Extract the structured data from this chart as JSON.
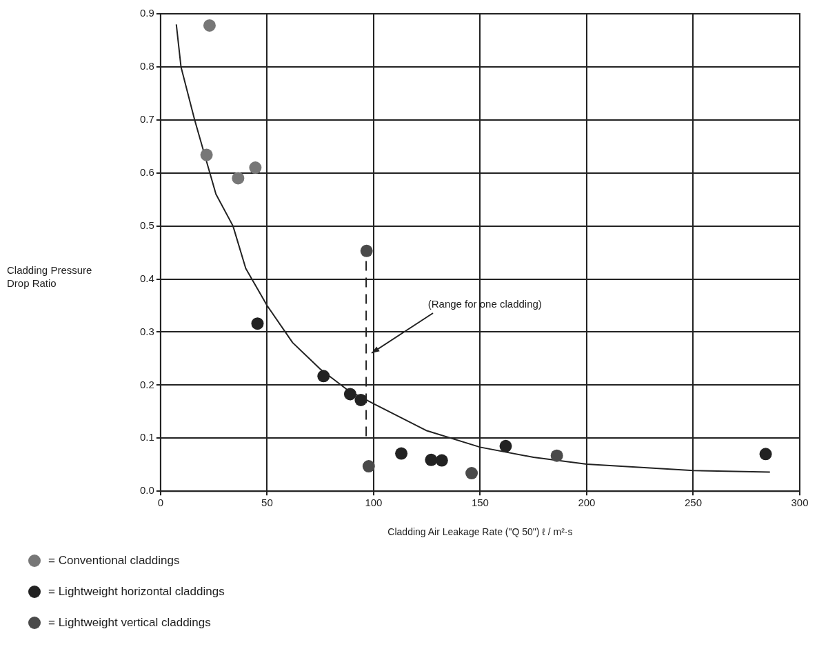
{
  "chart_data": {
    "type": "scatter",
    "xlabel": "Cladding Air Leakage Rate (\"Q 50\") ℓ / m²·s",
    "ylabel": "Cladding Pressure Drop Ratio",
    "xlim": [
      0,
      300
    ],
    "xticks": [
      0,
      50,
      100,
      150,
      200,
      250,
      300
    ],
    "ylim": [
      0,
      0.9
    ],
    "yticks": [
      {
        "value": 0,
        "label": "0.0"
      },
      0.1,
      0.2,
      0.3,
      0.4,
      0.5,
      0.6,
      0.7,
      0.8,
      0.9
    ],
    "grid": true,
    "legend": "bottom left",
    "marker": "circle",
    "annotations": [
      {
        "text": "(Range for one cladding)",
        "x": 98,
        "y": 0.26
      }
    ],
    "series": [
      {
        "name": "= Conventional claddings",
        "color": "#777777",
        "x": [
          23,
          21.6,
          36.4,
          44.5
        ],
        "values": [
          0.878,
          0.634,
          0.59,
          0.61
        ]
      },
      {
        "name": "= Lightweight horizontal claddings",
        "color": "#222222",
        "x": [
          45.5,
          76.5,
          89,
          94,
          113,
          127,
          132,
          162,
          284
        ],
        "values": [
          0.316,
          0.217,
          0.183,
          0.172,
          0.071,
          0.059,
          0.058,
          0.085,
          0.07
        ]
      },
      {
        "name": "= Lightweight vertical claddings",
        "color": "#4a4a4a",
        "x": [
          96.7,
          97.7,
          146,
          186
        ],
        "values": [
          0.453,
          0.047,
          0.034,
          0.067
        ]
      },
      {
        "type": "line",
        "color": "#222222",
        "marker": "none",
        "x": [
          7.4,
          9.6,
          16,
          21,
          26,
          34,
          40,
          50,
          62,
          75,
          88,
          100,
          125,
          150,
          175,
          200,
          250,
          286
        ],
        "values": [
          0.88,
          0.8,
          0.7,
          0.63,
          0.56,
          0.5,
          0.42,
          0.35,
          0.28,
          0.23,
          0.19,
          0.165,
          0.114,
          0.083,
          0.064,
          0.051,
          0.039,
          0.036
        ]
      },
      {
        "type": "line",
        "color": "#222222",
        "marker": "none",
        "line_style": "dashed",
        "x": [
          96.5,
          96.5
        ],
        "values": [
          0.434,
          0.101
        ]
      }
    ]
  }
}
